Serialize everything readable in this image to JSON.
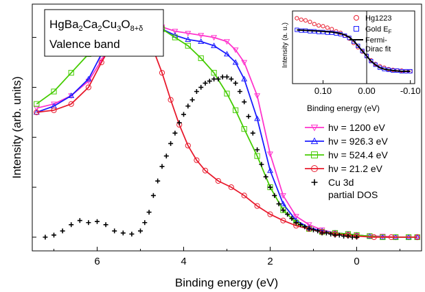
{
  "chart_data": [
    {
      "type": "line",
      "title": "",
      "annotation_line1": "HgBa",
      "annotation_sub1": "2",
      "annotation_ca": "Ca",
      "annotation_sub2": "2",
      "annotation_cu": "Cu",
      "annotation_sub3": "3",
      "annotation_o": "O",
      "annotation_sub4": "8+δ",
      "annotation_line2": "Valence band",
      "xlabel": "Binding energy (eV)",
      "ylabel": "Intensity (arb. units)",
      "x_reversed": true,
      "xlim": [
        7.5,
        -1.5
      ],
      "ylim": [
        0,
        1.12
      ],
      "x_ticks": [
        6,
        4,
        2,
        0
      ],
      "x_tick_labels": [
        "6",
        "4",
        "2",
        "0"
      ],
      "y_ticks": [
        0.0,
        0.24,
        0.48,
        0.72,
        0.96
      ],
      "legend_position": "center-right",
      "series": [
        {
          "name": "hν = 1200 eV",
          "color": "#ff33cc",
          "marker": "triangle-down",
          "x": [
            7.4,
            7.0,
            6.6,
            6.2,
            5.9,
            5.6,
            5.3,
            5.1,
            4.8,
            4.5,
            4.2,
            3.9,
            3.6,
            3.3,
            3.0,
            2.8,
            2.6,
            2.3,
            2.0,
            1.7,
            1.4,
            1.1,
            0.8,
            0.5,
            0.2,
            0.0,
            -0.3,
            -0.6,
            -0.9,
            -1.2,
            -1.4
          ],
          "y": [
            0.62,
            0.64,
            0.68,
            0.75,
            0.85,
            0.96,
            1.0,
            1.01,
            1.02,
            1.01,
            0.99,
            0.98,
            0.97,
            0.96,
            0.94,
            0.9,
            0.84,
            0.68,
            0.4,
            0.2,
            0.1,
            0.06,
            0.035,
            0.02,
            0.015,
            0.01,
            0.005,
            0.005,
            0.0,
            0.0,
            0.0
          ]
        },
        {
          "name": "hν = 926.3 eV",
          "color": "#1a1aff",
          "marker": "triangle-up",
          "x": [
            7.4,
            7.0,
            6.6,
            6.2,
            5.9,
            5.6,
            5.3,
            5.1,
            4.8,
            4.5,
            4.2,
            3.9,
            3.6,
            3.3,
            3.0,
            2.8,
            2.6,
            2.3,
            2.0,
            1.7,
            1.4,
            1.1,
            0.8,
            0.5,
            0.2,
            0.0,
            -0.3,
            -0.6,
            -0.9,
            -1.2,
            -1.4
          ],
          "y": [
            0.6,
            0.63,
            0.68,
            0.76,
            0.88,
            0.98,
            1.01,
            1.01,
            1.01,
            1.0,
            0.97,
            0.95,
            0.94,
            0.92,
            0.88,
            0.84,
            0.76,
            0.57,
            0.32,
            0.16,
            0.08,
            0.045,
            0.03,
            0.02,
            0.015,
            0.01,
            0.005,
            0.0,
            0.0,
            0.0,
            0.0
          ]
        },
        {
          "name": "hν = 524.4 eV",
          "color": "#44cc00",
          "marker": "square",
          "x": [
            7.4,
            7.0,
            6.6,
            6.2,
            5.9,
            5.6,
            5.3,
            5.1,
            4.8,
            4.5,
            4.2,
            3.9,
            3.6,
            3.3,
            3.0,
            2.8,
            2.6,
            2.3,
            2.0,
            1.7,
            1.4,
            1.1,
            0.8,
            0.5,
            0.2,
            0.0,
            -0.3,
            -0.6,
            -0.9,
            -1.2,
            -1.4
          ],
          "y": [
            0.64,
            0.7,
            0.79,
            0.88,
            0.95,
            0.99,
            1.01,
            1.02,
            1.02,
            1.0,
            0.96,
            0.92,
            0.86,
            0.79,
            0.69,
            0.61,
            0.52,
            0.39,
            0.24,
            0.13,
            0.07,
            0.04,
            0.025,
            0.02,
            0.015,
            0.01,
            0.005,
            0.0,
            0.0,
            0.0,
            0.0
          ]
        },
        {
          "name": "hν = 21.2 eV",
          "color": "#e8192c",
          "marker": "circle",
          "x": [
            7.4,
            7.0,
            6.6,
            6.2,
            5.9,
            5.6,
            5.3,
            5.1,
            4.9,
            4.7,
            4.5,
            4.3,
            4.1,
            3.9,
            3.7,
            3.5,
            3.2,
            2.9,
            2.6,
            2.3,
            2.0,
            1.7,
            1.4,
            1.1,
            0.8,
            0.5,
            0.2,
            0.0,
            -0.4,
            -0.8,
            -1.4
          ],
          "y": [
            0.6,
            0.61,
            0.64,
            0.72,
            0.84,
            0.95,
            1.0,
            1.01,
            0.98,
            0.9,
            0.79,
            0.66,
            0.54,
            0.44,
            0.37,
            0.32,
            0.27,
            0.24,
            0.2,
            0.15,
            0.11,
            0.08,
            0.055,
            0.04,
            0.025,
            0.015,
            0.01,
            0.005,
            0.0,
            0.0,
            0.0
          ]
        },
        {
          "name": "Cu 3d",
          "name_line2": "partial DOS",
          "color": "#000000",
          "marker": "plus",
          "x": [
            7.2,
            7.0,
            6.8,
            6.6,
            6.4,
            6.2,
            6.0,
            5.8,
            5.6,
            5.4,
            5.2,
            5.0,
            4.9,
            4.8,
            4.7,
            4.6,
            4.5,
            4.4,
            4.3,
            4.2,
            4.1,
            4.0,
            3.9,
            3.8,
            3.7,
            3.6,
            3.5,
            3.4,
            3.3,
            3.2,
            3.1,
            3.0,
            2.9,
            2.8,
            2.7,
            2.6,
            2.5,
            2.4,
            2.3,
            2.2,
            2.1,
            2.0,
            1.9,
            1.8,
            1.7,
            1.6,
            1.5,
            1.4,
            1.3,
            1.2,
            1.1,
            1.0,
            0.9,
            0.8,
            0.7,
            0.6,
            0.5,
            0.4,
            0.3,
            0.2,
            0.1,
            0.0
          ],
          "y": [
            0.0,
            0.01,
            0.03,
            0.06,
            0.08,
            0.07,
            0.075,
            0.06,
            0.03,
            0.02,
            0.015,
            0.03,
            0.07,
            0.12,
            0.2,
            0.27,
            0.34,
            0.39,
            0.45,
            0.5,
            0.55,
            0.59,
            0.63,
            0.66,
            0.7,
            0.72,
            0.74,
            0.75,
            0.76,
            0.76,
            0.77,
            0.77,
            0.76,
            0.74,
            0.7,
            0.65,
            0.58,
            0.5,
            0.42,
            0.35,
            0.29,
            0.24,
            0.2,
            0.16,
            0.13,
            0.11,
            0.09,
            0.07,
            0.06,
            0.05,
            0.04,
            0.035,
            0.03,
            0.02,
            0.02,
            0.015,
            0.01,
            0.01,
            0.005,
            0.005,
            0.0,
            0.0
          ]
        }
      ]
    },
    {
      "type": "scatter",
      "title": "",
      "xlabel": "Binding energy (eV)",
      "ylabel": "Intensity (a. u.)",
      "x_reversed": true,
      "xlim": [
        0.17,
        -0.11
      ],
      "ylim": [
        0,
        1.0
      ],
      "x_ticks": [
        0.1,
        0.0,
        -0.1
      ],
      "x_tick_labels": [
        "0.10",
        "0.00",
        "-0.10"
      ],
      "legend_position": "top-right",
      "series": [
        {
          "name": "Hg1223",
          "color": "#e8192c",
          "marker": "circle",
          "x": [
            0.16,
            0.15,
            0.14,
            0.13,
            0.12,
            0.11,
            0.1,
            0.09,
            0.08,
            0.07,
            0.06,
            0.05,
            0.04,
            0.03,
            0.02,
            0.01,
            0.0,
            -0.01,
            -0.02,
            -0.03,
            -0.04,
            -0.05,
            -0.06,
            -0.07,
            -0.08,
            -0.09,
            -0.1
          ],
          "y": [
            0.9,
            0.88,
            0.87,
            0.85,
            0.82,
            0.8,
            0.79,
            0.77,
            0.75,
            0.72,
            0.7,
            0.66,
            0.62,
            0.56,
            0.5,
            0.44,
            0.38,
            0.32,
            0.27,
            0.24,
            0.22,
            0.2,
            0.19,
            0.18,
            0.18,
            0.17,
            0.17
          ]
        },
        {
          "name": "Gold E",
          "name_sub": "F",
          "color": "#1a1aff",
          "marker": "square",
          "x": [
            0.16,
            0.15,
            0.14,
            0.13,
            0.12,
            0.11,
            0.1,
            0.09,
            0.08,
            0.07,
            0.06,
            0.05,
            0.04,
            0.03,
            0.02,
            0.01,
            0.0,
            -0.01,
            -0.02,
            -0.03,
            -0.04,
            -0.05,
            -0.06,
            -0.07,
            -0.08,
            -0.09,
            -0.1
          ],
          "y": [
            0.74,
            0.73,
            0.73,
            0.72,
            0.72,
            0.71,
            0.71,
            0.7,
            0.7,
            0.69,
            0.68,
            0.66,
            0.63,
            0.58,
            0.52,
            0.45,
            0.38,
            0.31,
            0.26,
            0.22,
            0.2,
            0.19,
            0.18,
            0.18,
            0.17,
            0.17,
            0.17
          ]
        },
        {
          "name": "Fermi-",
          "name_line2": "Dirac fit",
          "color": "#000000",
          "marker": "line",
          "x": [
            0.16,
            0.13,
            0.1,
            0.08,
            0.06,
            0.05,
            0.04,
            0.03,
            0.02,
            0.01,
            0.0,
            -0.01,
            -0.02,
            -0.03,
            -0.04,
            -0.06,
            -0.08,
            -0.1
          ],
          "y": [
            0.74,
            0.73,
            0.72,
            0.71,
            0.69,
            0.67,
            0.64,
            0.59,
            0.52,
            0.45,
            0.38,
            0.31,
            0.26,
            0.22,
            0.2,
            0.18,
            0.17,
            0.17
          ]
        }
      ]
    }
  ]
}
